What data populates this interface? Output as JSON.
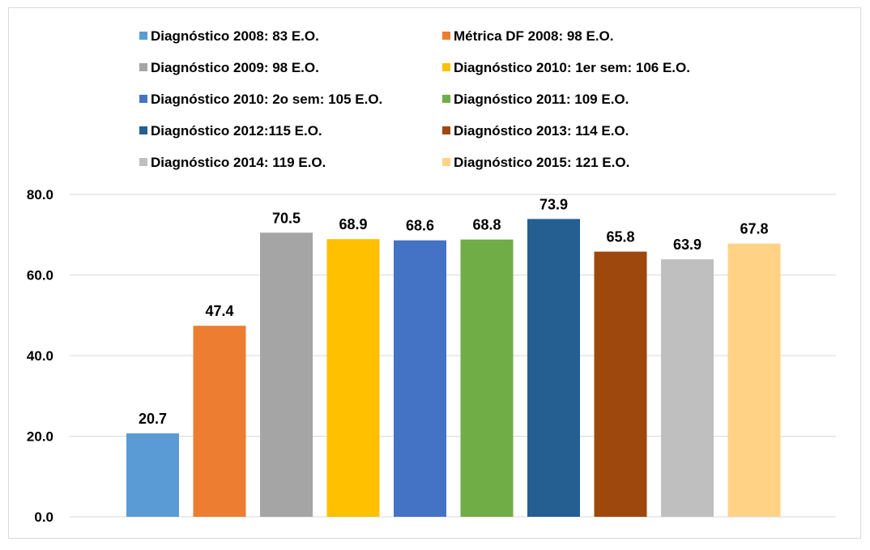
{
  "chart_data": {
    "type": "bar",
    "title": "",
    "xlabel": "",
    "ylabel": "",
    "ylim": [
      0,
      80
    ],
    "yticks": [
      "0.0",
      "20.0",
      "40.0",
      "60.0",
      "80.0"
    ],
    "grid": true,
    "legend_position": "top",
    "series": [
      {
        "name": "Diagnóstico 2008: 83 E.O.",
        "value": 20.7,
        "label": "20.7",
        "color": "#5b9bd5"
      },
      {
        "name": "Métrica DF 2008: 98 E.O.",
        "value": 47.4,
        "label": "47.4",
        "color": "#ed7d31"
      },
      {
        "name": "Diagnóstico 2009: 98 E.O.",
        "value": 70.5,
        "label": "70.5",
        "color": "#a5a5a5"
      },
      {
        "name": "Diagnóstico 2010: 1er sem: 106 E.O.",
        "value": 68.9,
        "label": "68.9",
        "color": "#ffc000"
      },
      {
        "name": "Diagnóstico 2010: 2o sem: 105 E.O.",
        "value": 68.6,
        "label": "68.6",
        "color": "#4472c4"
      },
      {
        "name": "Diagnóstico 2011: 109 E.O.",
        "value": 68.8,
        "label": "68.8",
        "color": "#70ad47"
      },
      {
        "name": "Diagnóstico 2012:115 E.O.",
        "value": 73.9,
        "label": "73.9",
        "color": "#255e91"
      },
      {
        "name": "Diagnóstico 2013: 114 E.O.",
        "value": 65.8,
        "label": "65.8",
        "color": "#9e480e"
      },
      {
        "name": "Diagnóstico 2014: 119 E.O.",
        "value": 63.9,
        "label": "63.9",
        "color": "#bfbfbf"
      },
      {
        "name": "Diagnóstico 2015: 121 E.O.",
        "value": 67.8,
        "label": "67.8",
        "color": "#ffd285"
      }
    ]
  }
}
